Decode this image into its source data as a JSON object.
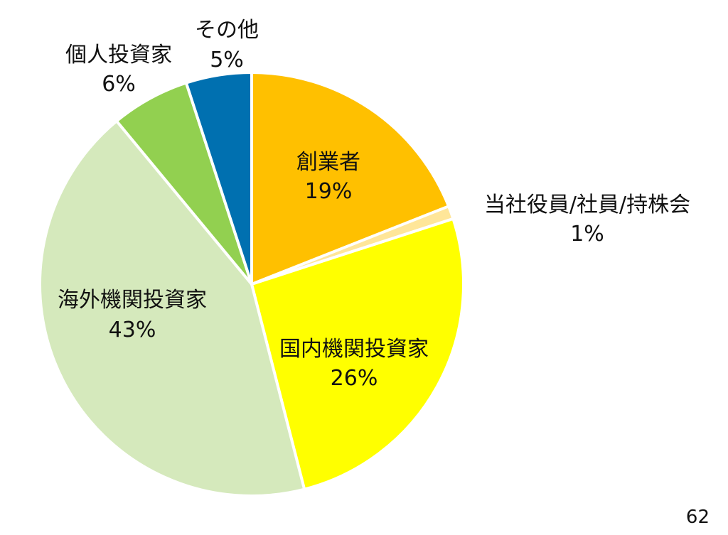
{
  "chart_data": {
    "type": "pie",
    "start_angle_deg": 0,
    "direction": "clockwise",
    "slices": [
      {
        "name": "創業者",
        "value": 19,
        "label": "19%",
        "color": "#FFC000"
      },
      {
        "name": "当社役員/社員/持株会",
        "value": 1,
        "label": "1%",
        "color": "#FFE699"
      },
      {
        "name": "国内機関投資家",
        "value": 26,
        "label": "26%",
        "color": "#FFFF00"
      },
      {
        "name": "海外機関投資家",
        "value": 43,
        "label": "43%",
        "color": "#D5E9BC"
      },
      {
        "name": "個人投資家",
        "value": 6,
        "label": "6%",
        "color": "#92D050"
      },
      {
        "name": "その他",
        "value": 5,
        "label": "5%",
        "color": "#0070B0"
      }
    ]
  },
  "page_number": "62"
}
